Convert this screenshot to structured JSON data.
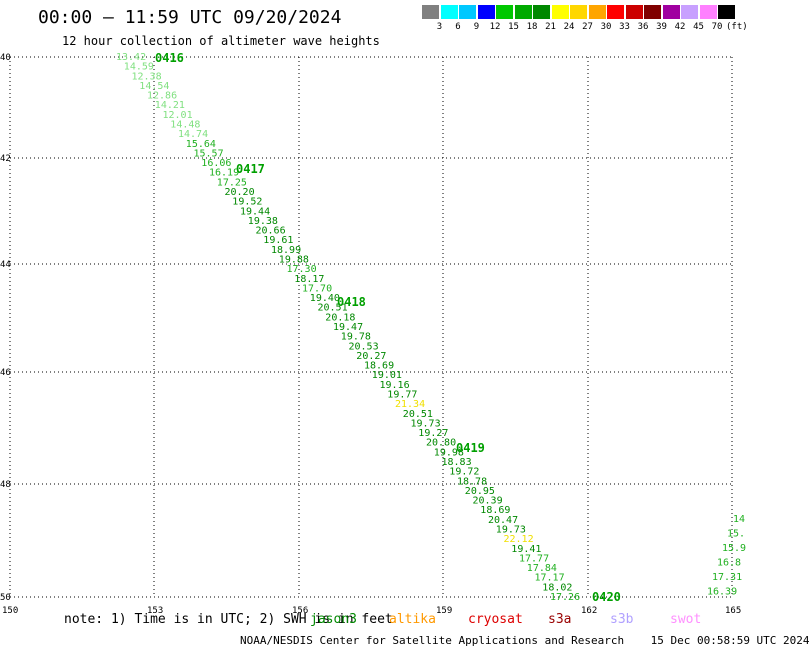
{
  "title": "00:00 — 11:59 UTC 09/20/2024",
  "subtitle": "12 hour collection of altimeter wave heights",
  "legend": {
    "colors": [
      "#808080",
      "#00ffff",
      "#00c8ff",
      "#0000ff",
      "#00c800",
      "#00aa00",
      "#008800",
      "#ffff00",
      "#ffd700",
      "#ffa500",
      "#ff0000",
      "#cc0000",
      "#800000",
      "#a000a0",
      "#c8a0ff",
      "#ff80ff",
      "#000000"
    ],
    "ticks": [
      "3",
      "6",
      "9",
      "12",
      "15",
      "18",
      "21",
      "24",
      "27",
      "30",
      "33",
      "36",
      "39",
      "42",
      "45",
      "70"
    ],
    "unit": "(ft)"
  },
  "axes": {
    "lon_labels": [
      "150",
      "153",
      "156",
      "159",
      "162",
      "165"
    ],
    "lat_labels": [
      "40",
      "42",
      "44",
      "46",
      "48",
      "50"
    ]
  },
  "passes": [
    {
      "label": "0416",
      "color": "#00a000"
    },
    {
      "label": "0417",
      "color": "#00a000"
    },
    {
      "label": "0418",
      "color": "#00a000"
    },
    {
      "label": "0419",
      "color": "#00a000"
    },
    {
      "label": "0420",
      "color": "#00a000"
    }
  ],
  "track_main": [
    {
      "v": "13.42",
      "c": "#80e080"
    },
    {
      "v": "14.59",
      "c": "#80e080"
    },
    {
      "v": "12.38",
      "c": "#80e080"
    },
    {
      "v": "14.54",
      "c": "#80e080"
    },
    {
      "v": "12.86",
      "c": "#80e080"
    },
    {
      "v": "14.21",
      "c": "#80e080"
    },
    {
      "v": "12.01",
      "c": "#80e080"
    },
    {
      "v": "14.48",
      "c": "#80e080"
    },
    {
      "v": "14.74",
      "c": "#80e080"
    },
    {
      "v": "15.64",
      "c": "#20b020"
    },
    {
      "v": "15.57",
      "c": "#20b020"
    },
    {
      "v": "16.06",
      "c": "#20b020"
    },
    {
      "v": "16.19",
      "c": "#20b020"
    },
    {
      "v": "17.25",
      "c": "#20b020"
    },
    {
      "v": "20.20",
      "c": "#008800"
    },
    {
      "v": "19.52",
      "c": "#008800"
    },
    {
      "v": "19.44",
      "c": "#008800"
    },
    {
      "v": "19.38",
      "c": "#008800"
    },
    {
      "v": "20.66",
      "c": "#008800"
    },
    {
      "v": "19.61",
      "c": "#008800"
    },
    {
      "v": "18.99",
      "c": "#008800"
    },
    {
      "v": "19.88",
      "c": "#008800"
    },
    {
      "v": "17.30",
      "c": "#20b020"
    },
    {
      "v": "18.17",
      "c": "#008800"
    },
    {
      "v": "17.70",
      "c": "#20b020"
    },
    {
      "v": "19.40",
      "c": "#008800"
    },
    {
      "v": "20.51",
      "c": "#008800"
    },
    {
      "v": "20.18",
      "c": "#008800"
    },
    {
      "v": "19.47",
      "c": "#008800"
    },
    {
      "v": "19.78",
      "c": "#008800"
    },
    {
      "v": "20.53",
      "c": "#008800"
    },
    {
      "v": "20.27",
      "c": "#008800"
    },
    {
      "v": "18.69",
      "c": "#008800"
    },
    {
      "v": "19.01",
      "c": "#008800"
    },
    {
      "v": "19.16",
      "c": "#008800"
    },
    {
      "v": "19.77",
      "c": "#008800"
    },
    {
      "v": "21.34",
      "c": "#f0e000"
    },
    {
      "v": "20.51",
      "c": "#008800"
    },
    {
      "v": "19.73",
      "c": "#008800"
    },
    {
      "v": "19.27",
      "c": "#008800"
    },
    {
      "v": "20.80",
      "c": "#008800"
    },
    {
      "v": "19.98",
      "c": "#008800"
    },
    {
      "v": "18.83",
      "c": "#008800"
    },
    {
      "v": "19.72",
      "c": "#008800"
    },
    {
      "v": "18.78",
      "c": "#008800"
    },
    {
      "v": "20.95",
      "c": "#008800"
    },
    {
      "v": "20.39",
      "c": "#008800"
    },
    {
      "v": "18.69",
      "c": "#008800"
    },
    {
      "v": "20.47",
      "c": "#008800"
    },
    {
      "v": "19.73",
      "c": "#008800"
    },
    {
      "v": "22.12",
      "c": "#f0e000"
    },
    {
      "v": "19.41",
      "c": "#008800"
    },
    {
      "v": "17.77",
      "c": "#20b020"
    },
    {
      "v": "17.84",
      "c": "#20b020"
    },
    {
      "v": "17.17",
      "c": "#20b020"
    },
    {
      "v": "18.02",
      "c": "#008800"
    },
    {
      "v": "17.26",
      "c": "#20b020"
    }
  ],
  "track_right": [
    {
      "v": "14",
      "c": "#20b020"
    },
    {
      "v": "15.",
      "c": "#20b020"
    },
    {
      "v": "15.9",
      "c": "#20b020"
    },
    {
      "v": "16.8",
      "c": "#20b020"
    },
    {
      "v": "17.31",
      "c": "#20b020"
    },
    {
      "v": "16.39",
      "c": "#20b020"
    }
  ],
  "note": "note: 1) Time is in UTC; 2) SWH is in feet",
  "satellites": [
    {
      "name": "jason3",
      "color": "#008800"
    },
    {
      "name": "altika",
      "color": "#ff9900"
    },
    {
      "name": "cryosat",
      "color": "#dd0000"
    },
    {
      "name": "s3a",
      "color": "#990000"
    },
    {
      "name": "s3b",
      "color": "#b0a0ff"
    },
    {
      "name": "swot",
      "color": "#ff90ff"
    }
  ],
  "footer": "NOAA/NESDIS Center for Satellite Applications and Research    15 Dec 00:58:59 UTC 2024"
}
